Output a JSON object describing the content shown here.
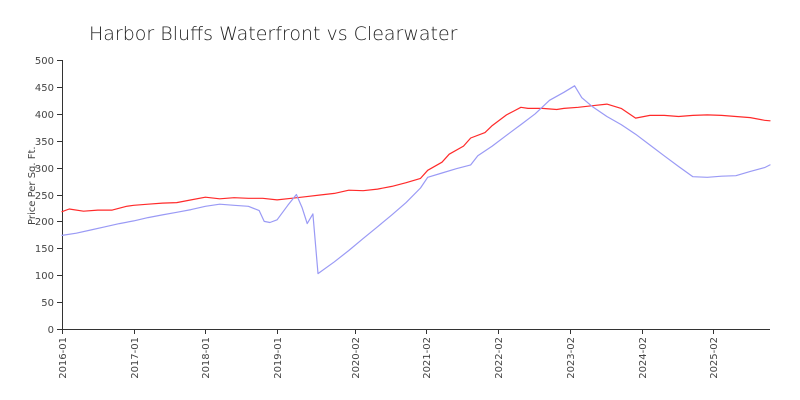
{
  "chart_data": {
    "type": "line",
    "title": "Harbor Bluffs Waterfront vs Clearwater",
    "xlabel": "",
    "ylabel": "Price Per Sq. Ft.",
    "ylim": [
      0,
      500
    ],
    "yticks": [
      0,
      50,
      100,
      150,
      200,
      250,
      300,
      350,
      400,
      450,
      500
    ],
    "xlim": [
      2016.0,
      2025.875
    ],
    "xticks": [
      {
        "label": "2016-01",
        "value": 2016.0
      },
      {
        "label": "2017-01",
        "value": 2017.0
      },
      {
        "label": "2018-01",
        "value": 2018.0
      },
      {
        "label": "2019-01",
        "value": 2019.0
      },
      {
        "label": "2020-02",
        "value": 2020.083
      },
      {
        "label": "2021-02",
        "value": 2021.083
      },
      {
        "label": "2022-02",
        "value": 2022.083
      },
      {
        "label": "2023-02",
        "value": 2023.083
      },
      {
        "label": "2024-02",
        "value": 2024.083
      },
      {
        "label": "2025-02",
        "value": 2025.083
      }
    ],
    "grid": false,
    "series": [
      {
        "name": "Harbor Bluffs Waterfront",
        "color": "#ff2a2a",
        "points": [
          [
            2016.0,
            218
          ],
          [
            2016.1,
            223
          ],
          [
            2016.3,
            219
          ],
          [
            2016.5,
            221
          ],
          [
            2016.7,
            221
          ],
          [
            2016.9,
            228
          ],
          [
            2017.0,
            230
          ],
          [
            2017.2,
            232
          ],
          [
            2017.4,
            234
          ],
          [
            2017.6,
            235
          ],
          [
            2017.8,
            240
          ],
          [
            2018.0,
            245
          ],
          [
            2018.2,
            242
          ],
          [
            2018.4,
            244
          ],
          [
            2018.6,
            243
          ],
          [
            2018.8,
            243
          ],
          [
            2019.0,
            240
          ],
          [
            2019.2,
            243
          ],
          [
            2019.4,
            246
          ],
          [
            2019.6,
            249
          ],
          [
            2019.8,
            252
          ],
          [
            2020.0,
            258
          ],
          [
            2020.2,
            257
          ],
          [
            2020.4,
            260
          ],
          [
            2020.6,
            265
          ],
          [
            2020.8,
            272
          ],
          [
            2021.0,
            280
          ],
          [
            2021.1,
            295
          ],
          [
            2021.3,
            310
          ],
          [
            2021.4,
            325
          ],
          [
            2021.6,
            340
          ],
          [
            2021.7,
            355
          ],
          [
            2021.9,
            365
          ],
          [
            2022.0,
            378
          ],
          [
            2022.2,
            398
          ],
          [
            2022.3,
            405
          ],
          [
            2022.4,
            412
          ],
          [
            2022.5,
            410
          ],
          [
            2022.7,
            410
          ],
          [
            2022.9,
            408
          ],
          [
            2023.0,
            410
          ],
          [
            2023.2,
            412
          ],
          [
            2023.4,
            415
          ],
          [
            2023.6,
            418
          ],
          [
            2023.8,
            410
          ],
          [
            2024.0,
            392
          ],
          [
            2024.2,
            397
          ],
          [
            2024.4,
            397
          ],
          [
            2024.6,
            395
          ],
          [
            2024.8,
            397
          ],
          [
            2025.0,
            398
          ],
          [
            2025.2,
            397
          ],
          [
            2025.4,
            395
          ],
          [
            2025.6,
            393
          ],
          [
            2025.8,
            388
          ],
          [
            2025.875,
            387
          ]
        ]
      },
      {
        "name": "Clearwater",
        "color": "#9a9af5",
        "points": [
          [
            2016.0,
            174
          ],
          [
            2016.2,
            178
          ],
          [
            2016.4,
            184
          ],
          [
            2016.6,
            190
          ],
          [
            2016.8,
            196
          ],
          [
            2017.0,
            201
          ],
          [
            2017.2,
            207
          ],
          [
            2017.4,
            212
          ],
          [
            2017.6,
            217
          ],
          [
            2017.8,
            222
          ],
          [
            2018.0,
            228
          ],
          [
            2018.2,
            232
          ],
          [
            2018.4,
            230
          ],
          [
            2018.6,
            228
          ],
          [
            2018.75,
            220
          ],
          [
            2018.82,
            200
          ],
          [
            2018.9,
            198
          ],
          [
            2019.0,
            203
          ],
          [
            2019.15,
            230
          ],
          [
            2019.27,
            250
          ],
          [
            2019.35,
            225
          ],
          [
            2019.42,
            196
          ],
          [
            2019.5,
            214
          ],
          [
            2019.57,
            103
          ],
          [
            2019.8,
            125
          ],
          [
            2020.0,
            146
          ],
          [
            2020.2,
            168
          ],
          [
            2020.4,
            190
          ],
          [
            2020.6,
            212
          ],
          [
            2020.8,
            235
          ],
          [
            2021.0,
            262
          ],
          [
            2021.1,
            282
          ],
          [
            2021.3,
            290
          ],
          [
            2021.5,
            298
          ],
          [
            2021.7,
            305
          ],
          [
            2021.8,
            322
          ],
          [
            2022.0,
            340
          ],
          [
            2022.2,
            360
          ],
          [
            2022.4,
            380
          ],
          [
            2022.6,
            400
          ],
          [
            2022.8,
            425
          ],
          [
            2023.0,
            440
          ],
          [
            2023.15,
            452
          ],
          [
            2023.25,
            430
          ],
          [
            2023.4,
            413
          ],
          [
            2023.6,
            395
          ],
          [
            2023.8,
            380
          ],
          [
            2024.0,
            362
          ],
          [
            2024.2,
            342
          ],
          [
            2024.4,
            322
          ],
          [
            2024.6,
            302
          ],
          [
            2024.8,
            283
          ],
          [
            2025.0,
            282
          ],
          [
            2025.2,
            284
          ],
          [
            2025.4,
            285
          ],
          [
            2025.6,
            293
          ],
          [
            2025.8,
            300
          ],
          [
            2025.875,
            305
          ]
        ]
      }
    ]
  }
}
